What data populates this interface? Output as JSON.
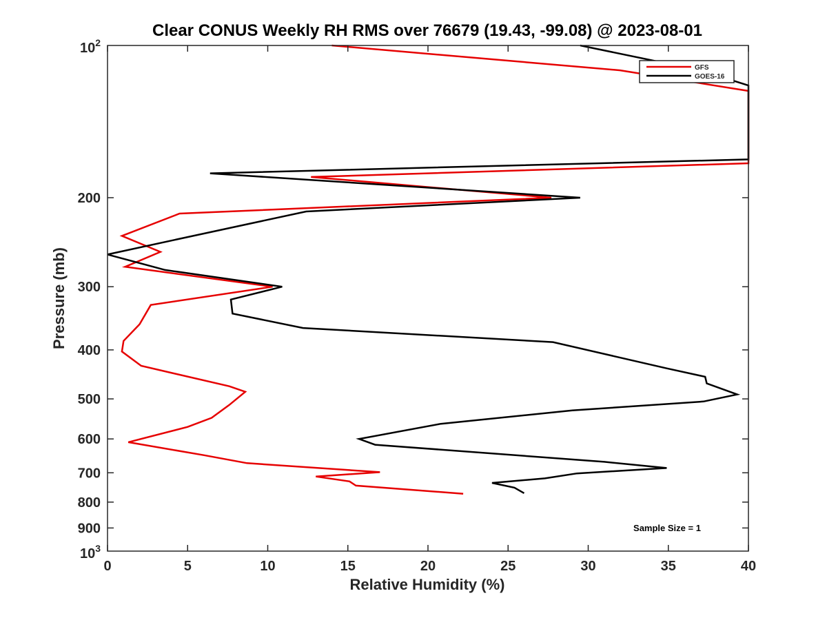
{
  "chart_data": {
    "type": "line",
    "title": "Clear CONUS Weekly RH RMS over 76679 (19.43, -99.08) @ 2023-08-01",
    "xlabel": "Relative Humidity (%)",
    "ylabel": "Pressure (mb)",
    "xlim": [
      0,
      40
    ],
    "ylim": [
      100,
      1000
    ],
    "y_scale": "log",
    "y_reversed": true,
    "x_ticks": [
      0,
      5,
      10,
      15,
      20,
      25,
      30,
      35,
      40
    ],
    "x_tick_labels": [
      "0",
      "5",
      "10",
      "15",
      "20",
      "25",
      "30",
      "35",
      "40"
    ],
    "y_ticks": [
      200,
      300,
      400,
      500,
      600,
      700,
      800,
      900
    ],
    "y_tick_labels": [
      "200",
      "300",
      "400",
      "500",
      "600",
      "700",
      "800",
      "900"
    ],
    "y_end_labels": {
      "top_base": "10",
      "top_exp": "2",
      "bottom_base": "10",
      "bottom_exp": "3"
    },
    "grid": false,
    "legend_position": "top-right",
    "annotation": "Sample Size = 1",
    "series": [
      {
        "name": "GFS",
        "color": "#e60000",
        "points": [
          [
            14.0,
            100
          ],
          [
            32.0,
            112
          ],
          [
            40.0,
            123
          ],
          [
            40.0,
            171
          ],
          [
            12.7,
            182
          ],
          [
            27.7,
            200
          ],
          [
            4.5,
            215
          ],
          [
            0.9,
            238
          ],
          [
            3.3,
            256
          ],
          [
            1.1,
            274
          ],
          [
            10.3,
            300
          ],
          [
            2.7,
            326
          ],
          [
            2.0,
            356
          ],
          [
            1.0,
            384
          ],
          [
            0.9,
            403
          ],
          [
            2.1,
            430
          ],
          [
            7.6,
            472
          ],
          [
            8.6,
            484
          ],
          [
            7.6,
            514
          ],
          [
            6.5,
            545
          ],
          [
            5.0,
            568
          ],
          [
            1.3,
            609
          ],
          [
            6.0,
            646
          ],
          [
            8.7,
            670
          ],
          [
            17.0,
            698
          ],
          [
            13.0,
            712
          ],
          [
            15.1,
            728
          ],
          [
            15.5,
            742
          ],
          [
            22.2,
            770
          ]
        ]
      },
      {
        "name": "GOES-16",
        "color": "#000000",
        "points": [
          [
            29.5,
            100
          ],
          [
            37.0,
            112
          ],
          [
            40.0,
            120
          ],
          [
            40.0,
            168
          ],
          [
            6.4,
            179
          ],
          [
            29.5,
            200
          ],
          [
            12.4,
            213
          ],
          [
            4.8,
            240
          ],
          [
            0.0,
            259
          ],
          [
            3.6,
            278
          ],
          [
            10.9,
            300
          ],
          [
            7.7,
            318
          ],
          [
            7.8,
            339
          ],
          [
            12.2,
            362
          ],
          [
            27.8,
            386
          ],
          [
            34.9,
            435
          ],
          [
            37.3,
            452
          ],
          [
            37.4,
            466
          ],
          [
            39.3,
            490
          ],
          [
            37.2,
            506
          ],
          [
            29.0,
            527
          ],
          [
            20.8,
            560
          ],
          [
            15.7,
            600
          ],
          [
            16.7,
            616
          ],
          [
            31.0,
            666
          ],
          [
            34.9,
            685
          ],
          [
            29.3,
            702
          ],
          [
            27.3,
            718
          ],
          [
            24.0,
            733
          ],
          [
            25.4,
            749
          ],
          [
            26.0,
            768
          ]
        ]
      }
    ]
  }
}
